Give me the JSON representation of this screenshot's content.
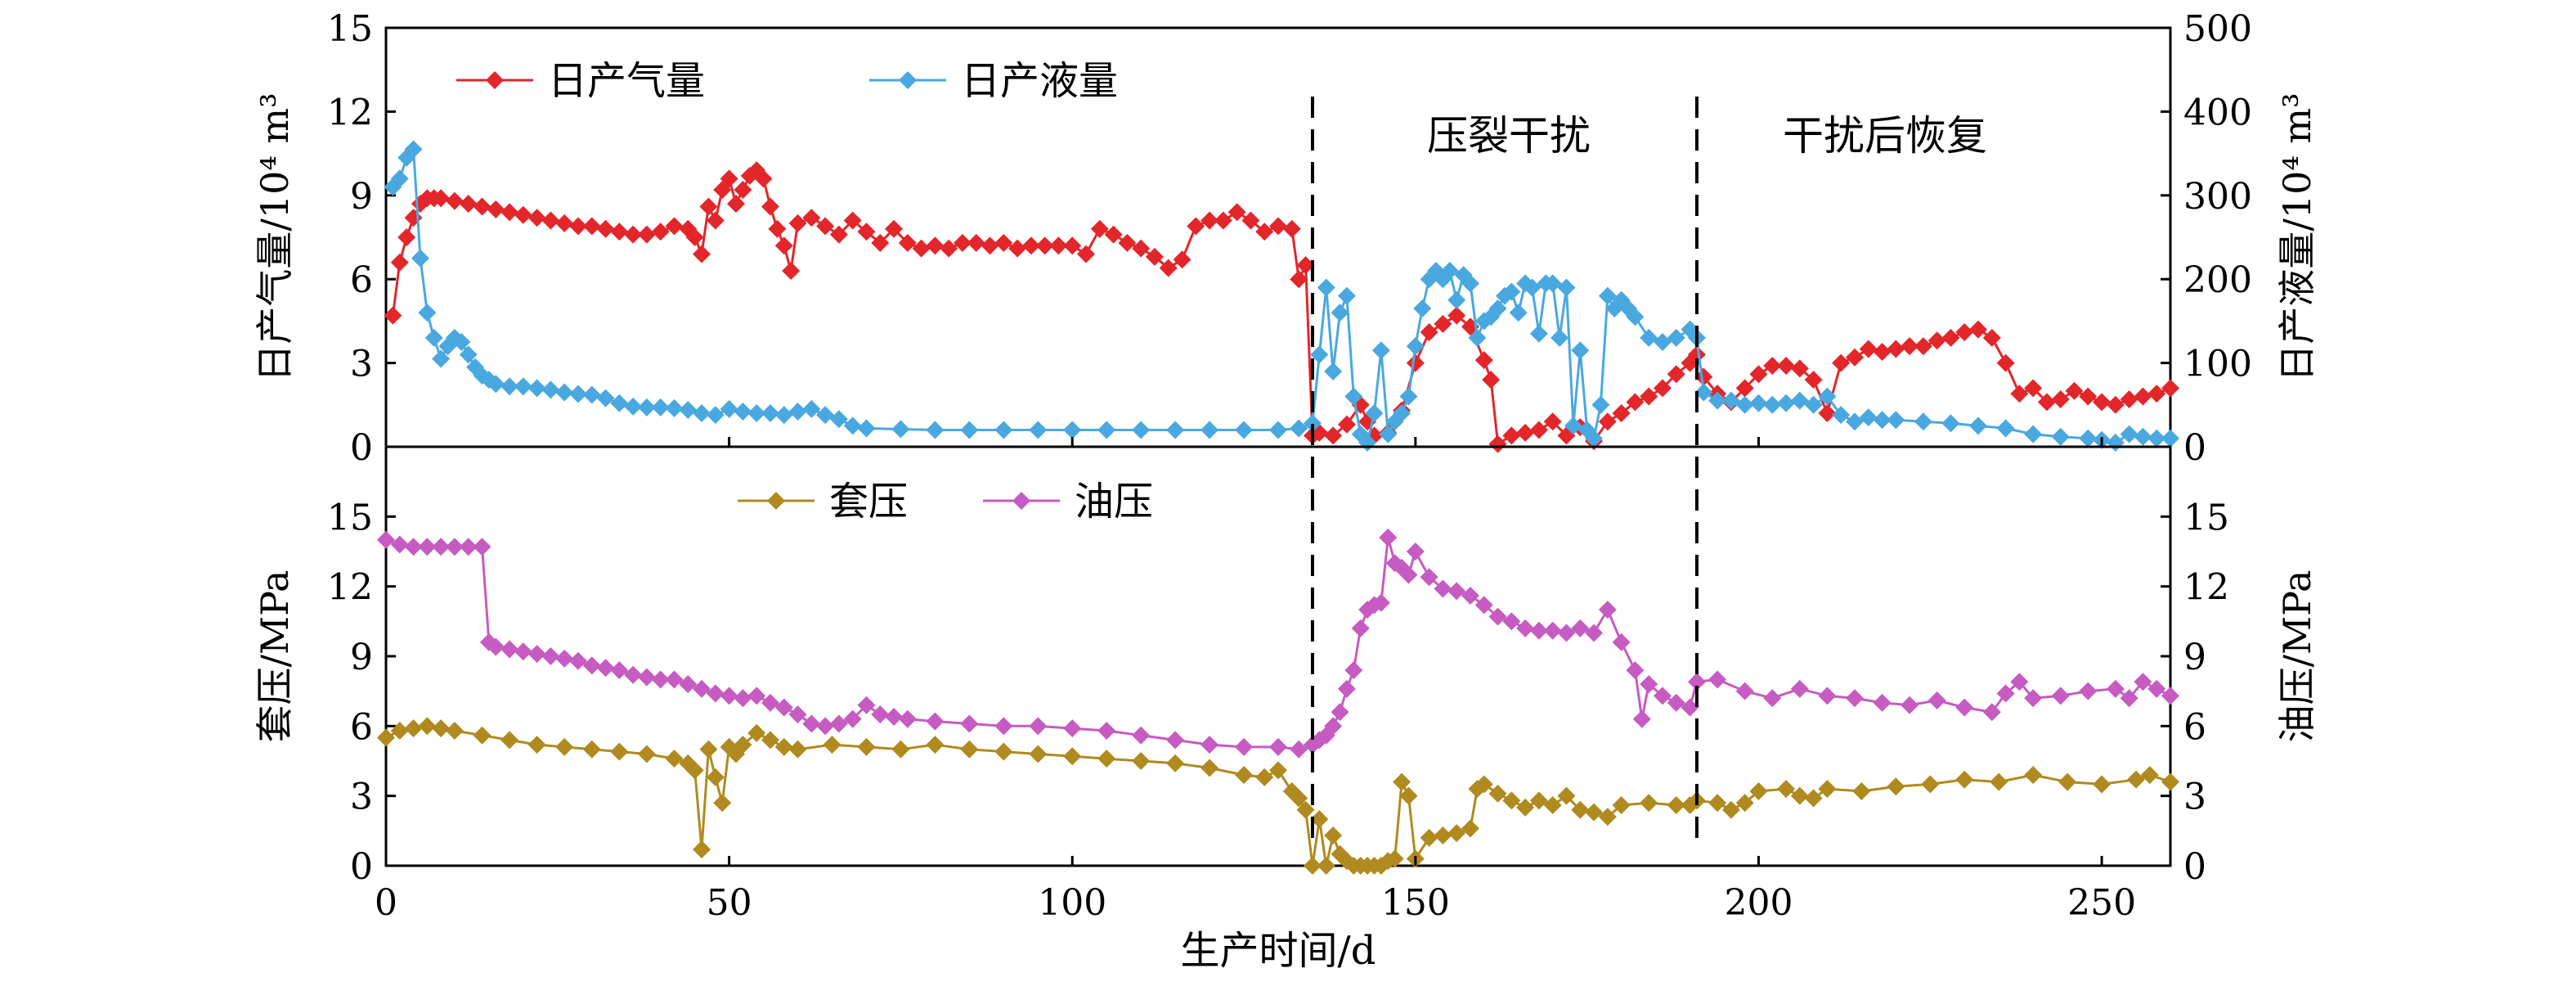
{
  "colors": {
    "gas": "#e3262a",
    "liquid": "#4aa8e0",
    "casing": "#b08a1f",
    "tubing": "#c65bc2"
  },
  "annotations": {
    "stage_frac": "压裂干扰",
    "stage_recovery": "干扰后恢复",
    "divider_days": [
      135,
      191
    ]
  },
  "chart_data": [
    {
      "type": "line",
      "panel": "top",
      "xlabel": "生产时间/d",
      "xlim": [
        0,
        260
      ],
      "xticks": [
        0,
        50,
        100,
        150,
        200,
        250
      ],
      "ylabel_left": "日产气量/10⁴ m³",
      "ylim_left": [
        0,
        15
      ],
      "yticks_left": [
        0,
        3,
        6,
        9,
        12,
        15
      ],
      "ylabel_right": "日产液量/10⁴ m³",
      "ylim_right": [
        0,
        500
      ],
      "yticks_right": [
        0,
        100,
        200,
        300,
        400,
        500
      ],
      "legend": "top-left",
      "series": [
        {
          "name": "日产气量",
          "axis": "left",
          "color": "gas",
          "x": [
            1,
            2,
            3,
            4,
            5,
            6,
            7,
            8,
            10,
            12,
            14,
            16,
            18,
            20,
            22,
            24,
            26,
            28,
            30,
            32,
            34,
            36,
            38,
            40,
            42,
            44,
            45,
            46,
            47,
            48,
            49,
            50,
            51,
            52,
            53,
            54,
            55,
            56,
            57,
            58,
            59,
            60,
            62,
            64,
            66,
            68,
            70,
            72,
            74,
            76,
            78,
            80,
            82,
            84,
            86,
            88,
            90,
            92,
            94,
            96,
            98,
            100,
            102,
            104,
            106,
            108,
            110,
            112,
            114,
            116,
            118,
            120,
            122,
            124,
            126,
            128,
            130,
            132,
            133,
            134,
            135,
            136,
            138,
            140,
            142,
            143,
            144,
            146,
            148,
            150,
            152,
            154,
            156,
            158,
            160,
            161,
            162,
            164,
            166,
            168,
            170,
            172,
            174,
            176,
            178,
            180,
            182,
            184,
            186,
            188,
            190,
            191,
            192,
            194,
            196,
            198,
            200,
            202,
            204,
            206,
            208,
            210,
            212,
            214,
            216,
            218,
            220,
            222,
            224,
            226,
            228,
            230,
            232,
            234,
            236,
            238,
            240,
            242,
            244,
            246,
            248,
            250,
            252,
            254,
            256,
            258,
            260
          ],
          "values": [
            4.7,
            6.6,
            7.5,
            8.2,
            8.7,
            8.9,
            8.9,
            8.9,
            8.8,
            8.7,
            8.6,
            8.5,
            8.4,
            8.3,
            8.2,
            8.1,
            8.0,
            7.9,
            7.9,
            7.8,
            7.7,
            7.6,
            7.6,
            7.7,
            7.9,
            7.8,
            7.5,
            6.9,
            8.6,
            8.1,
            9.2,
            9.6,
            8.7,
            9.2,
            9.7,
            9.9,
            9.6,
            8.6,
            7.8,
            7.2,
            6.3,
            8.0,
            8.2,
            7.9,
            7.6,
            8.1,
            7.7,
            7.3,
            7.8,
            7.3,
            7.1,
            7.2,
            7.1,
            7.3,
            7.3,
            7.2,
            7.3,
            7.1,
            7.2,
            7.2,
            7.2,
            7.2,
            6.9,
            7.8,
            7.6,
            7.3,
            7.1,
            6.8,
            6.4,
            6.7,
            7.9,
            8.1,
            8.1,
            8.4,
            8.1,
            7.7,
            7.9,
            7.8,
            6.0,
            6.5,
            0.4,
            0.5,
            0.4,
            0.8,
            1.5,
            0.9,
            0.4,
            0.5,
            1.3,
            3.0,
            4.1,
            4.4,
            4.7,
            4.3,
            3.1,
            2.4,
            0.1,
            0.4,
            0.5,
            0.6,
            0.9,
            0.4,
            0.7,
            0.2,
            0.9,
            1.2,
            1.6,
            1.8,
            2.1,
            2.6,
            3.0,
            3.3,
            2.5,
            1.9,
            1.6,
            2.1,
            2.6,
            2.9,
            2.9,
            2.8,
            2.4,
            1.2,
            3.0,
            3.2,
            3.5,
            3.4,
            3.5,
            3.6,
            3.6,
            3.8,
            3.9,
            4.1,
            4.2,
            3.9,
            3.0,
            1.9,
            2.1,
            1.6,
            1.7,
            2.0,
            1.8,
            1.6,
            1.5,
            1.7,
            1.8,
            1.9,
            2.1
          ]
        },
        {
          "name": "日产液量",
          "axis": "right",
          "color": "liquid",
          "x": [
            1,
            2,
            3,
            4,
            5,
            6,
            7,
            8,
            9,
            10,
            11,
            12,
            13,
            14,
            15,
            16,
            18,
            20,
            22,
            24,
            26,
            28,
            30,
            32,
            34,
            36,
            38,
            40,
            42,
            44,
            46,
            48,
            50,
            52,
            54,
            56,
            58,
            60,
            62,
            64,
            66,
            68,
            70,
            75,
            80,
            85,
            90,
            95,
            100,
            105,
            110,
            115,
            120,
            125,
            130,
            133,
            135,
            136,
            137,
            138,
            139,
            140,
            141,
            142,
            143,
            144,
            145,
            146,
            147,
            148,
            149,
            150,
            151,
            152,
            153,
            154,
            155,
            156,
            157,
            158,
            159,
            160,
            161,
            162,
            163,
            164,
            165,
            166,
            167,
            168,
            169,
            170,
            171,
            172,
            173,
            174,
            175,
            176,
            177,
            178,
            179,
            180,
            181,
            182,
            184,
            186,
            188,
            190,
            191,
            192,
            194,
            196,
            198,
            200,
            202,
            204,
            206,
            208,
            210,
            212,
            214,
            216,
            218,
            220,
            224,
            228,
            232,
            236,
            240,
            244,
            248,
            250,
            252,
            254,
            256,
            258,
            260
          ],
          "values": [
            310,
            320,
            345,
            355,
            225,
            160,
            130,
            105,
            120,
            130,
            125,
            110,
            95,
            85,
            80,
            75,
            72,
            72,
            70,
            68,
            65,
            63,
            62,
            58,
            52,
            48,
            47,
            47,
            46,
            44,
            40,
            38,
            45,
            42,
            40,
            40,
            38,
            42,
            45,
            38,
            33,
            25,
            22,
            21,
            20,
            20,
            20,
            20,
            20,
            20,
            20,
            20,
            20,
            20,
            20,
            22,
            28,
            110,
            190,
            90,
            160,
            180,
            60,
            15,
            5,
            40,
            115,
            15,
            30,
            40,
            60,
            120,
            165,
            200,
            210,
            200,
            210,
            175,
            205,
            195,
            130,
            150,
            155,
            165,
            180,
            185,
            160,
            195,
            190,
            135,
            195,
            195,
            130,
            190,
            25,
            115,
            20,
            10,
            50,
            180,
            165,
            175,
            165,
            155,
            130,
            125,
            130,
            140,
            130,
            65,
            55,
            55,
            50,
            52,
            50,
            52,
            55,
            50,
            60,
            38,
            30,
            35,
            32,
            32,
            30,
            28,
            25,
            22,
            15,
            12,
            10,
            8,
            5,
            15,
            12,
            10,
            10
          ]
        }
      ]
    },
    {
      "type": "line",
      "panel": "bottom",
      "xlabel": "生产时间/d",
      "xlim": [
        0,
        260
      ],
      "xticks": [
        0,
        50,
        100,
        150,
        200,
        250
      ],
      "ylabel_left": "套压/MPa",
      "ylim_left": [
        0,
        18
      ],
      "yticks_left": [
        0,
        3,
        6,
        9,
        12,
        15
      ],
      "ylabel_right": "油压/MPa",
      "ylim_right": [
        0,
        18
      ],
      "yticks_right": [
        0,
        3,
        6,
        9,
        12,
        15
      ],
      "legend": "top-center",
      "series": [
        {
          "name": "套压",
          "axis": "left",
          "color": "casing",
          "x": [
            0,
            2,
            4,
            6,
            8,
            10,
            14,
            18,
            22,
            26,
            30,
            34,
            38,
            42,
            44,
            45,
            46,
            47,
            48,
            49,
            50,
            51,
            52,
            54,
            56,
            58,
            60,
            65,
            70,
            75,
            80,
            85,
            90,
            95,
            100,
            105,
            110,
            115,
            120,
            125,
            128,
            130,
            132,
            133,
            134,
            135,
            136,
            137,
            138,
            139,
            140,
            141,
            142,
            143,
            144,
            145,
            146,
            147,
            148,
            149,
            150,
            152,
            154,
            156,
            158,
            159,
            160,
            162,
            164,
            166,
            168,
            170,
            172,
            174,
            176,
            178,
            180,
            184,
            188,
            190,
            191,
            194,
            196,
            198,
            200,
            204,
            206,
            208,
            210,
            215,
            220,
            225,
            230,
            235,
            240,
            245,
            250,
            255,
            257,
            260
          ],
          "values": [
            5.5,
            5.8,
            5.9,
            6.0,
            5.9,
            5.8,
            5.6,
            5.4,
            5.2,
            5.1,
            5.0,
            4.9,
            4.8,
            4.6,
            4.4,
            4.1,
            0.7,
            5.0,
            3.8,
            2.7,
            5.1,
            4.8,
            5.2,
            5.7,
            5.4,
            5.1,
            5.0,
            5.2,
            5.1,
            5.0,
            5.2,
            5.0,
            4.9,
            4.8,
            4.7,
            4.6,
            4.5,
            4.4,
            4.2,
            3.9,
            3.8,
            4.1,
            3.2,
            2.9,
            2.4,
            0.0,
            2.0,
            0.0,
            1.3,
            0.5,
            0.2,
            0.0,
            0.0,
            0.0,
            0.0,
            0.0,
            0.2,
            0.3,
            3.6,
            3.0,
            0.3,
            1.2,
            1.3,
            1.4,
            1.6,
            3.3,
            3.5,
            3.1,
            2.8,
            2.5,
            2.8,
            2.6,
            3.0,
            2.4,
            2.3,
            2.1,
            2.6,
            2.7,
            2.6,
            2.6,
            2.8,
            2.7,
            2.4,
            2.7,
            3.2,
            3.3,
            3.0,
            2.9,
            3.3,
            3.2,
            3.4,
            3.5,
            3.7,
            3.6,
            3.9,
            3.6,
            3.5,
            3.7,
            3.9,
            3.6
          ]
        },
        {
          "name": "油压",
          "axis": "right",
          "color": "tubing",
          "x": [
            0,
            2,
            4,
            6,
            8,
            10,
            12,
            14,
            15,
            16,
            18,
            20,
            22,
            24,
            26,
            28,
            30,
            32,
            34,
            36,
            38,
            40,
            42,
            44,
            46,
            48,
            50,
            52,
            54,
            56,
            58,
            60,
            62,
            64,
            66,
            68,
            70,
            72,
            74,
            76,
            80,
            85,
            90,
            95,
            100,
            105,
            110,
            115,
            120,
            125,
            130,
            133,
            135,
            136,
            137,
            138,
            139,
            140,
            141,
            142,
            143,
            144,
            145,
            146,
            147,
            148,
            149,
            150,
            152,
            154,
            156,
            158,
            160,
            162,
            164,
            166,
            168,
            170,
            172,
            174,
            176,
            178,
            180,
            182,
            183,
            184,
            186,
            188,
            190,
            191,
            194,
            198,
            202,
            206,
            210,
            214,
            218,
            222,
            226,
            230,
            234,
            236,
            238,
            240,
            244,
            248,
            252,
            254,
            256,
            258,
            260
          ],
          "values": [
            14.0,
            13.8,
            13.7,
            13.7,
            13.7,
            13.7,
            13.7,
            13.7,
            9.6,
            9.4,
            9.3,
            9.2,
            9.1,
            9.0,
            8.9,
            8.8,
            8.6,
            8.5,
            8.4,
            8.2,
            8.1,
            8.0,
            8.0,
            7.8,
            7.6,
            7.4,
            7.3,
            7.2,
            7.3,
            7.0,
            6.8,
            6.5,
            6.1,
            6.0,
            6.1,
            6.3,
            6.9,
            6.5,
            6.4,
            6.3,
            6.2,
            6.1,
            6.0,
            6.0,
            5.9,
            5.8,
            5.6,
            5.4,
            5.2,
            5.1,
            5.1,
            5.0,
            5.2,
            5.4,
            5.6,
            6.0,
            6.6,
            7.6,
            8.4,
            10.2,
            11.0,
            11.2,
            11.3,
            14.1,
            13.0,
            12.8,
            12.5,
            13.5,
            12.4,
            11.9,
            11.8,
            11.6,
            11.2,
            10.7,
            10.5,
            10.2,
            10.1,
            10.1,
            10.0,
            10.2,
            10.0,
            11.0,
            9.6,
            8.4,
            6.3,
            7.8,
            7.3,
            7.0,
            6.8,
            7.9,
            8.0,
            7.5,
            7.2,
            7.6,
            7.3,
            7.2,
            7.0,
            6.9,
            7.1,
            6.8,
            6.6,
            7.4,
            7.9,
            7.2,
            7.3,
            7.5,
            7.6,
            7.2,
            7.9,
            7.6,
            7.3
          ]
        }
      ]
    }
  ]
}
